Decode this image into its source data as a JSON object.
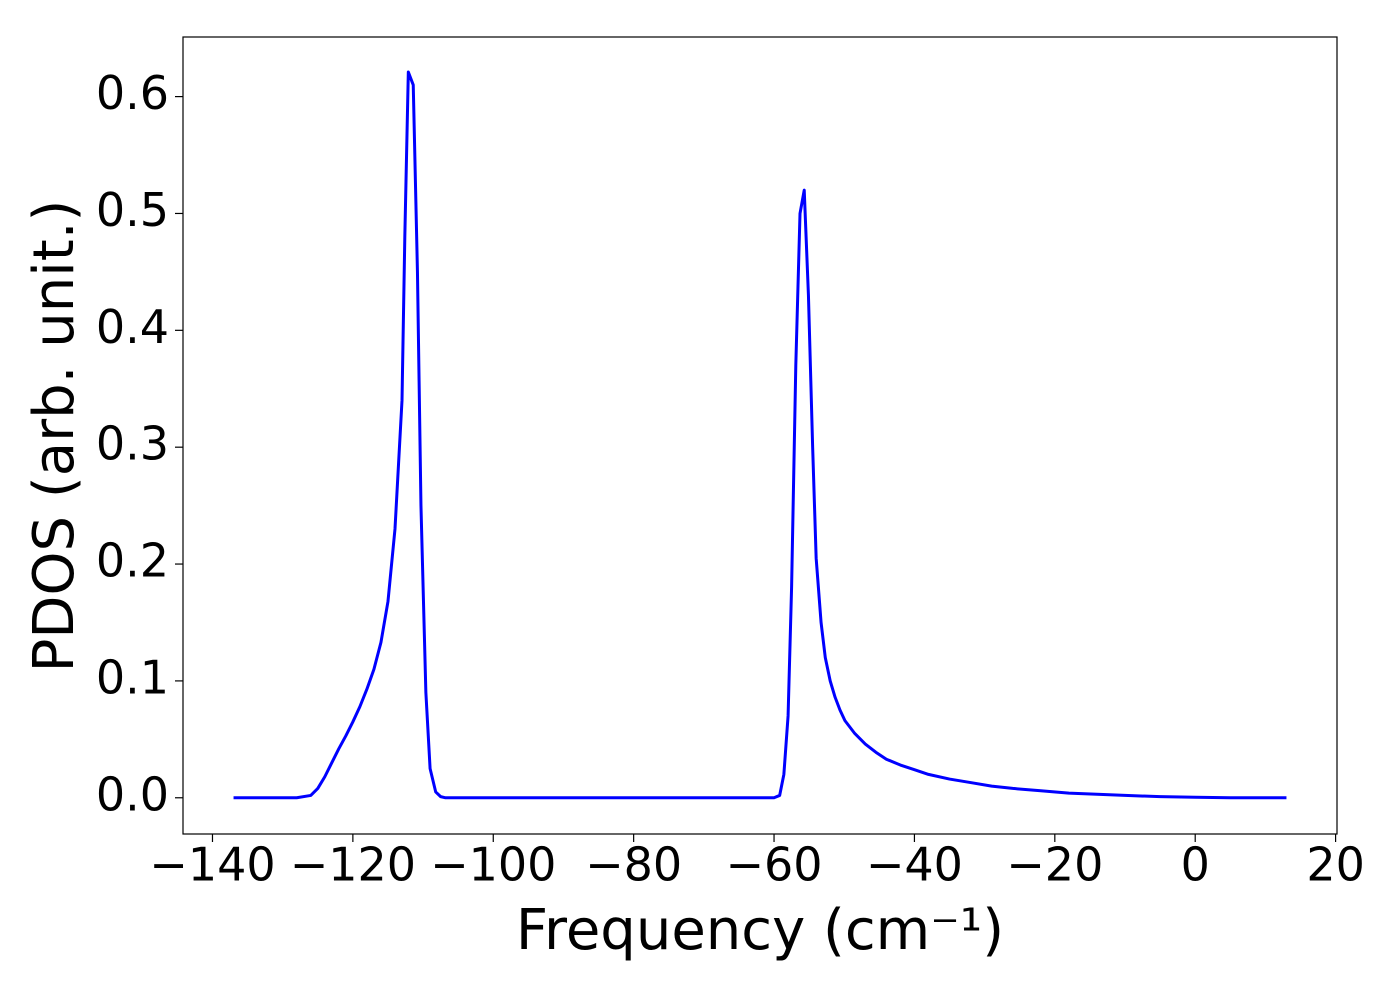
{
  "chart_data": {
    "type": "line",
    "x_label": "Frequency (cm⁻¹)",
    "y_label": "PDOS (arb. unit.)",
    "x": [
      -137,
      -128,
      -126,
      -125,
      -124,
      -123,
      -122,
      -121,
      -120,
      -119,
      -118,
      -117,
      -116,
      -115,
      -114,
      -113,
      -112.6,
      -112.1,
      -111.4,
      -110.8,
      -110.3,
      -109.6,
      -109,
      -108.2,
      -107.5,
      -106.8,
      -60,
      -59.2,
      -58.6,
      -58,
      -57.5,
      -56.9,
      -56.3,
      -55.7,
      -55.1,
      -54.5,
      -54,
      -53.3,
      -52.7,
      -52,
      -51.3,
      -50.6,
      -49.9,
      -48.5,
      -47,
      -45.5,
      -44,
      -42,
      -40,
      -38,
      -35,
      -32,
      -29,
      -26,
      -22,
      -18,
      -14,
      -10,
      -5,
      0,
      5,
      13
    ],
    "series": [
      {
        "color": "#0000ff",
        "values": [
          0,
          0,
          0.002,
          0.008,
          0.018,
          0.03,
          0.042,
          0.053,
          0.065,
          0.078,
          0.093,
          0.11,
          0.133,
          0.168,
          0.23,
          0.34,
          0.48,
          0.621,
          0.61,
          0.45,
          0.25,
          0.09,
          0.025,
          0.005,
          0.001,
          0,
          0,
          0.002,
          0.02,
          0.07,
          0.18,
          0.37,
          0.5,
          0.52,
          0.43,
          0.3,
          0.205,
          0.15,
          0.12,
          0.1,
          0.086,
          0.075,
          0.066,
          0.055,
          0.046,
          0.039,
          0.033,
          0.028,
          0.024,
          0.02,
          0.016,
          0.013,
          0.01,
          0.008,
          0.006,
          0.004,
          0.003,
          0.002,
          0.001,
          0.0005,
          0,
          0
        ]
      }
    ],
    "xlim": [
      -144.2,
      20.2
    ],
    "ylim": [
      -0.031,
      0.651
    ],
    "xticks": [
      {
        "value": -140,
        "label": "−140"
      },
      {
        "value": -120,
        "label": "−120"
      },
      {
        "value": -100,
        "label": "−100"
      },
      {
        "value": -80,
        "label": "−80"
      },
      {
        "value": -60,
        "label": "−60"
      },
      {
        "value": -40,
        "label": "−40"
      },
      {
        "value": -20,
        "label": "−20"
      },
      0,
      20
    ],
    "yticks": [
      {
        "value": 0,
        "label": "0.0"
      },
      0.1,
      0.2,
      0.3,
      0.4,
      0.5,
      0.6
    ],
    "grid": false
  }
}
